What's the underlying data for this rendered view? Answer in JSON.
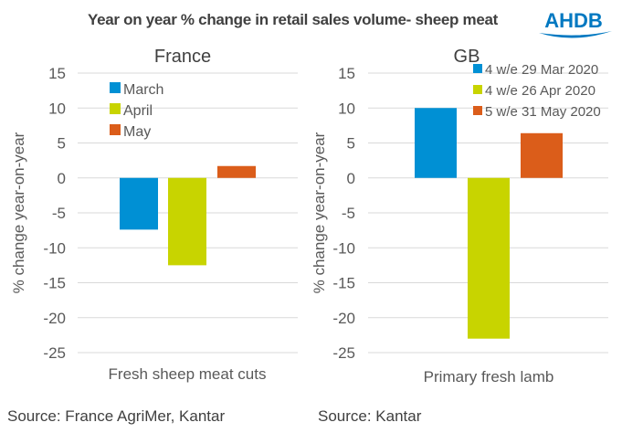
{
  "title": "Year on year % change in retail sales volume- sheep meat",
  "logo_text": "AHDB",
  "colors": {
    "blue": "#0090d4",
    "green": "#c8d400",
    "orange": "#db5d1a",
    "grid": "#d9d9d9",
    "text": "#595959"
  },
  "chart_data": [
    {
      "type": "bar",
      "title": "France",
      "xlabel": "Fresh sheep meat cuts",
      "ylabel": "% change year-on-year",
      "ylim": [
        -25,
        15
      ],
      "yticks": [
        "15",
        "10",
        "5",
        "0",
        "-5",
        "-10",
        "-15",
        "-20",
        "-25"
      ],
      "categories": [
        "Fresh sheep meat cuts"
      ],
      "legend_position": "top-left",
      "series": [
        {
          "name": "March",
          "values": [
            -7.4
          ]
        },
        {
          "name": "April",
          "values": [
            -12.5
          ]
        },
        {
          "name": "May",
          "values": [
            1.7
          ]
        }
      ],
      "grid": true
    },
    {
      "type": "bar",
      "title": "GB",
      "xlabel": "Primary fresh lamb",
      "ylabel": "% change year-on-year",
      "ylim": [
        -25,
        15
      ],
      "yticks": [
        "15",
        "10",
        "5",
        "0",
        "-5",
        "-10",
        "-15",
        "-20",
        "-25"
      ],
      "categories": [
        "Primary fresh lamb"
      ],
      "legend_position": "top-right",
      "series": [
        {
          "name": "4 w/e 29 Mar 2020",
          "values": [
            10.0
          ]
        },
        {
          "name": "4 w/e 26 Apr 2020",
          "values": [
            -23.0
          ]
        },
        {
          "name": "5 w/e 31 May 2020",
          "values": [
            6.4
          ]
        }
      ],
      "grid": true
    }
  ],
  "sources": [
    "Source: France AgriMer, Kantar",
    "Source: Kantar"
  ]
}
